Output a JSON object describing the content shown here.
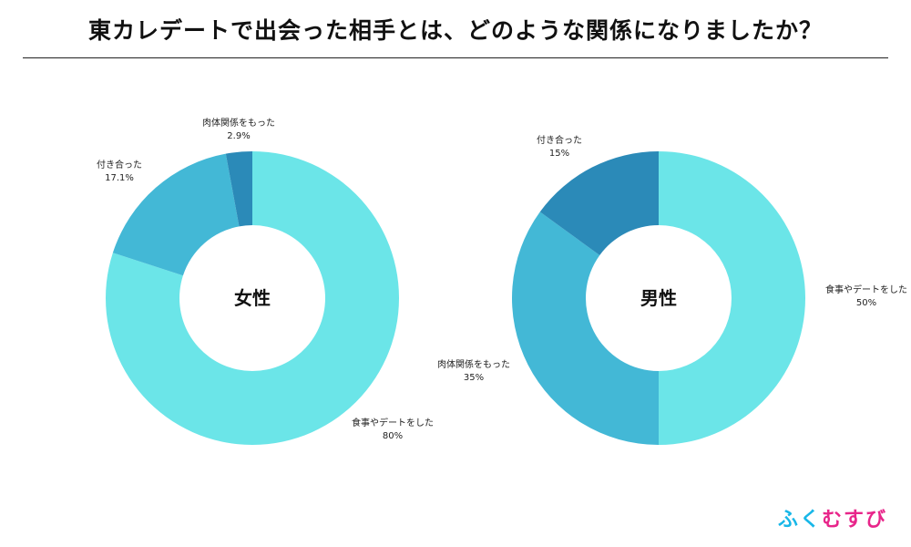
{
  "page": {
    "title": "東カレデートで出会った相手とは、どのような関係になりましたか？"
  },
  "logo": {
    "chars": [
      "ふ",
      "く",
      "む",
      "す",
      "び"
    ],
    "colors": [
      "#18b7e8",
      "#18b7e8",
      "#e8258a",
      "#e8258a",
      "#e8258a"
    ]
  },
  "chart_data": [
    {
      "type": "pie",
      "subtype": "donut",
      "center_label": "女性",
      "slices": [
        {
          "label": "食事やデートをした",
          "value": 80,
          "value_label": "80%",
          "color": "#6be5e8"
        },
        {
          "label": "付き合った",
          "value": 17.1,
          "value_label": "17.1%",
          "color": "#43b8d6"
        },
        {
          "label": "肉体関係をもった",
          "value": 2.9,
          "value_label": "2.9%",
          "color": "#2b8ab8"
        }
      ]
    },
    {
      "type": "pie",
      "subtype": "donut",
      "center_label": "男性",
      "slices": [
        {
          "label": "食事やデートをした",
          "value": 50,
          "value_label": "50%",
          "color": "#6be5e8"
        },
        {
          "label": "肉体関係をもった",
          "value": 35,
          "value_label": "35%",
          "color": "#43b8d6"
        },
        {
          "label": "付き合った",
          "value": 15,
          "value_label": "15%",
          "color": "#2b8ab8"
        }
      ]
    }
  ]
}
